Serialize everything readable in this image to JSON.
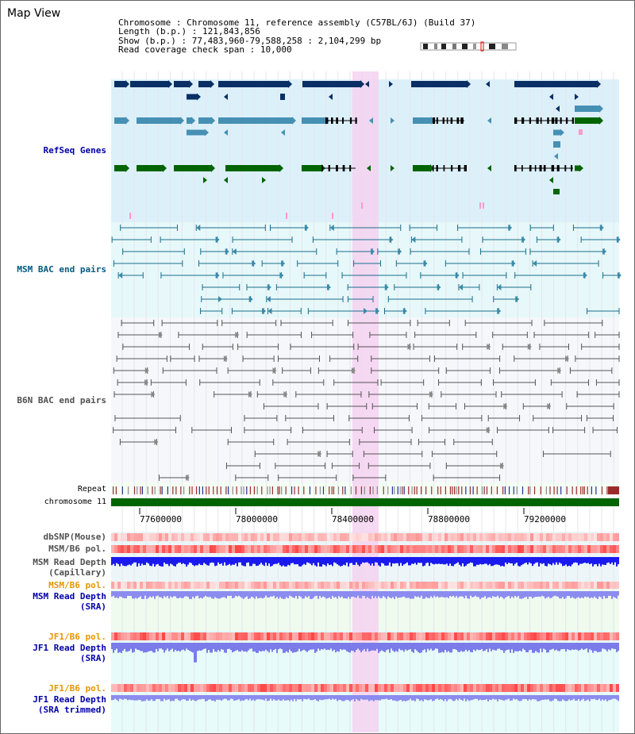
{
  "window": {
    "title": "Map View"
  },
  "info": {
    "chromosome_label": "Chromosome",
    "chromosome_value": "Chromosome 11, reference assembly (C57BL/6J) (Build 37)",
    "length_label": "Length (b.p.)",
    "length_value": "121,843,856",
    "show_label": "Show (b.p.)",
    "show_value": "77,483,960-79,588,258 : 2,104,299 bp",
    "span_label": "Read coverage check span",
    "span_value": "10,000"
  },
  "tracks": {
    "refseq": "RefSeq Genes",
    "msm_bac": "MSM BAC end pairs",
    "b6n_bac": "B6N BAC end pairs",
    "repeat": "Repeat",
    "chromosome": "chromosome 11",
    "dbsnp": "dbSNP(Mouse)",
    "msm_b6_pol": "MSM/B6 pol.",
    "msm_depth_cap_1": "MSM Read Depth",
    "msm_depth_cap_2": "(Capillary)",
    "msm_b6_pol_2": "MSM/B6 pol.",
    "msm_depth_sra_1": "MSM Read Depth",
    "msm_depth_sra_2": "(SRA)",
    "jf1_b6_pol": "JF1/B6 pol.",
    "jf1_depth_sra_1": "JF1 Read Depth",
    "jf1_depth_sra_2": "(SRA)",
    "jf1_b6_pol_2": "JF1/B6 pol.",
    "jf1_depth_trim_1": "JF1 Read Depth",
    "jf1_depth_trim_2": "(SRA trimmed)"
  },
  "axis": {
    "ticks": [
      "77600000",
      "78000000",
      "78400000",
      "78800000",
      "79200000"
    ]
  },
  "colors": {
    "refseq_bg": "#dcf0fa",
    "msm_bg": "#e6f8fa",
    "b6n_bg": "#f5f7fb",
    "highlight": "#f5d2f0",
    "refseq_dark": "#0a2f64",
    "refseq_mid": "#4690b4",
    "refseq_green": "#006400",
    "msm_line": "#1a6e8c",
    "b6n_line": "#555555",
    "chromosome": "#006400",
    "label_blue": "#0000aa",
    "label_teal": "#005a82",
    "label_orange": "#e69600",
    "label_gray": "#505050"
  }
}
